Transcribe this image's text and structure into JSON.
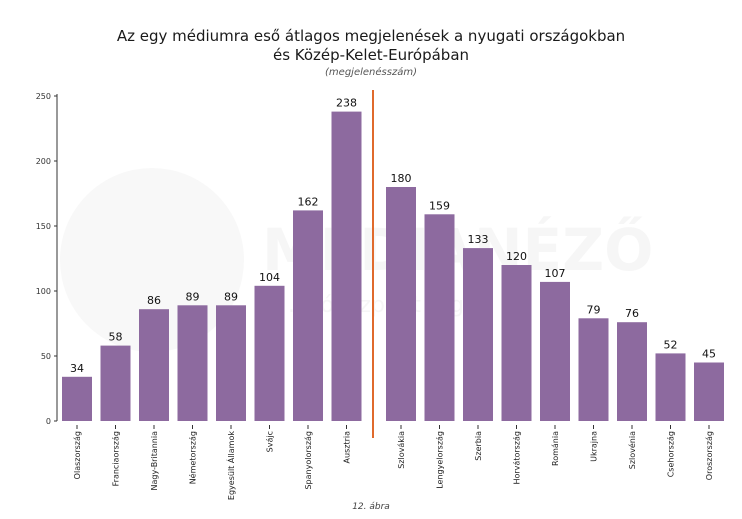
{
  "chart_data": {
    "type": "bar",
    "title_line1": "Az egy médiumra eső átlagos megjelenések a nyugati országokban",
    "title_line2": "és Közép-Kelet-Európában",
    "subtitle": "(megjelenésszám)",
    "caption": "12. ábra",
    "ylim": [
      0,
      250
    ],
    "yticks": [
      0,
      50,
      100,
      150,
      200,
      250
    ],
    "groups": [
      {
        "name": "nyugati",
        "categories": [
          "Olaszország",
          "Franciaország",
          "Nagy-Britannia",
          "Németország",
          "Egyesült Államok",
          "Svájc",
          "Spanyolország",
          "Ausztria"
        ],
        "values": [
          34,
          58,
          86,
          89,
          89,
          104,
          162,
          238
        ]
      },
      {
        "name": "kozep-kelet",
        "categories": [
          "Szlovákia",
          "Lengyelország",
          "Szerbia",
          "Horvátország",
          "Románia",
          "Ukrajna",
          "Szlovénia",
          "Csehország",
          "Oroszország"
        ],
        "values": [
          180,
          159,
          133,
          120,
          107,
          79,
          76,
          52,
          45
        ]
      }
    ],
    "colors": {
      "bar": "#8d6a9f",
      "divider": "#e06a2c",
      "axis": "#333333"
    },
    "watermark": {
      "brand": "MÉDIANÉZŐ",
      "tagline": "...zóközpont tagja"
    }
  }
}
